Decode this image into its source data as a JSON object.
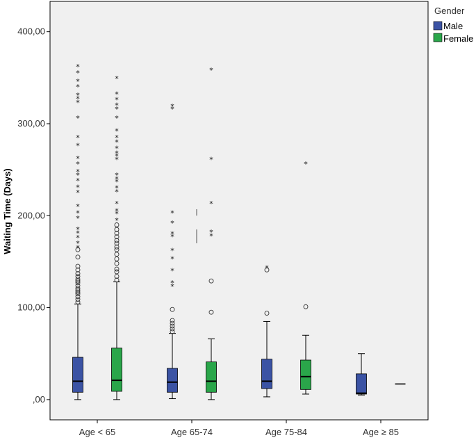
{
  "chart_data": {
    "type": "boxplot",
    "title": "",
    "xlabel": "",
    "ylabel": "Waiting Time (Days)",
    "ylim": [
      -22,
      433
    ],
    "y_ticks": [
      0,
      100,
      200,
      300,
      400
    ],
    "y_tick_labels": [
      ",00",
      "100,00",
      "200,00",
      "300,00",
      "400,00"
    ],
    "grid": false,
    "legend": {
      "title": "Gender",
      "position": "top-right"
    },
    "categories": [
      "Age < 65",
      "Age 65-74",
      "Age 75-84",
      "Age ≥ 85"
    ],
    "series": [
      {
        "name": "Male",
        "color": "#3b53a4",
        "boxes": [
          {
            "min": 0,
            "q1": 8,
            "median": 20,
            "q3": 46,
            "max": 104,
            "outliers": [
              106,
              109,
              112,
              115,
              117,
              119,
              121,
              124,
              127,
              129,
              131,
              134,
              137,
              141,
              145,
              155,
              163
            ],
            "extremes": [
              165,
              170,
              176,
              181,
              185,
              197,
              203,
              210,
              225,
              231,
              238,
              244,
              248,
              256,
              262,
              276,
              285,
              306,
              323,
              327,
              331,
              340,
              346,
              355,
              362
            ]
          },
          {
            "min": 1,
            "q1": 8,
            "median": 19,
            "q3": 34,
            "max": 72,
            "outliers": [
              74,
              77,
              80,
              83,
              86,
              98
            ],
            "extremes": [
              123,
              127,
              140,
              153,
              162,
              177,
              180,
              192,
              203,
              316,
              319
            ]
          },
          {
            "min": 3,
            "q1": 12,
            "median": 20,
            "q3": 44,
            "max": 85,
            "outliers": [
              94,
              141
            ],
            "extremes": [
              143
            ]
          },
          {
            "min": 5,
            "q1": 6,
            "median": 7,
            "q3": 28,
            "max": 50,
            "outliers": [],
            "extremes": []
          }
        ]
      },
      {
        "name": "Female",
        "color": "#2aa64a",
        "boxes": [
          {
            "min": 0,
            "q1": 9,
            "median": 21,
            "q3": 56,
            "max": 128,
            "outliers": [
              130,
              134,
              139,
              142,
              148,
              153,
              158,
              163,
              166,
              170,
              173,
              177,
              181,
              185,
              190
            ],
            "extremes": [
              195,
              202,
              205,
              213,
              226,
              230,
              237,
              240,
              244,
              261,
              265,
              268,
              273,
              280,
              285,
              292,
              306,
              316,
              320,
              326,
              332,
              349
            ]
          },
          {
            "min": 0,
            "q1": 8,
            "median": 20,
            "q3": 41,
            "max": 66,
            "outliers": [
              95,
              129
            ],
            "extremes": [
              178,
              182,
              213,
              261,
              358
            ]
          },
          {
            "min": 6,
            "q1": 11,
            "median": 25,
            "q3": 43,
            "max": 70,
            "outliers": [
              101
            ],
            "extremes": [
              256
            ]
          },
          {
            "min": 17,
            "q1": 17,
            "median": 17,
            "q3": 17,
            "max": 17,
            "outliers": [],
            "extremes": []
          }
        ]
      }
    ]
  },
  "colors": {
    "background": "#ffffff",
    "plot_background": "#f0f0f0",
    "axis": "#000000",
    "whisker": "#000000"
  }
}
